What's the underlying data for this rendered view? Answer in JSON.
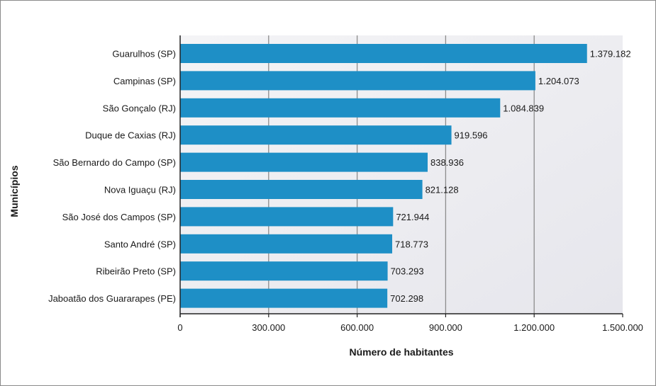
{
  "chart_data": {
    "type": "bar",
    "orientation": "horizontal",
    "categories": [
      "Guarulhos (SP)",
      "Campinas (SP)",
      "São Gonçalo (RJ)",
      "Duque de Caxias (RJ)",
      "São Bernardo do Campo (SP)",
      "Nova Iguaçu (RJ)",
      "São José dos Campos (SP)",
      "Santo André (SP)",
      "Ribeirão Preto (SP)",
      "Jaboatão dos Guararapes (PE)"
    ],
    "values": [
      1379182,
      1204073,
      1084839,
      919596,
      838936,
      821128,
      721944,
      718773,
      703293,
      702298
    ],
    "data_labels": [
      "1.379.182",
      "1.204.073",
      "1.084.839",
      "919.596",
      "838.936",
      "821.128",
      "721.944",
      "718.773",
      "703.293",
      "702.298"
    ],
    "xlabel": "Número de habitantes",
    "ylabel": "Municípios",
    "xlim": [
      0,
      1500000
    ],
    "xticks": [
      0,
      300000,
      600000,
      900000,
      1200000,
      1500000
    ],
    "xtick_labels": [
      "0",
      "300.000",
      "600.000",
      "900.000",
      "1.200.000",
      "1.500.000"
    ],
    "grid": "vertical",
    "bar_color": "#1e8fc6",
    "plot_background": "#eeeef2"
  }
}
